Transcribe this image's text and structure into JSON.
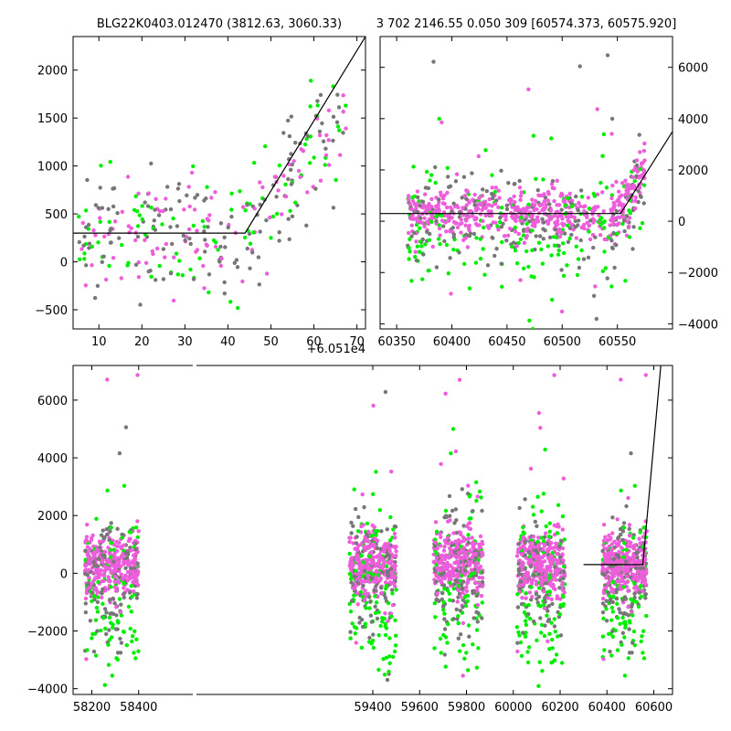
{
  "chart_data": [
    {
      "type": "scatter",
      "name": "zoom-left",
      "title": "BLG22K0403.012470 (3812.63, 3060.33)",
      "xlim": [
        4,
        72
      ],
      "ylim": [
        -700,
        2350
      ],
      "x_ticks": [
        10,
        20,
        30,
        40,
        50,
        60,
        70
      ],
      "y_ticks": [
        -500,
        0,
        500,
        1000,
        1500,
        2000
      ],
      "x_offset_label": "+6.051e4",
      "y_axis_side": "left",
      "model_line": [
        [
          4,
          300
        ],
        [
          44,
          300
        ],
        [
          72,
          2350
        ]
      ],
      "colors": {
        "magenta": "#ee5ddb",
        "green": "#00ee00",
        "gray": "#777777"
      }
    },
    {
      "type": "scatter",
      "name": "zoom-right",
      "title": "3 702 2146.55 0.050 309 [60574.373, 60575.920]",
      "xlim": [
        60335,
        60600
      ],
      "ylim": [
        -4200,
        7200
      ],
      "x_ticks": [
        60350,
        60400,
        60450,
        60500,
        60550
      ],
      "y_ticks": [
        -4000,
        -2000,
        0,
        2000,
        4000,
        6000
      ],
      "y_axis_side": "right",
      "model_line": [
        [
          60335,
          300
        ],
        [
          60553,
          300
        ],
        [
          60600,
          3500
        ]
      ],
      "colors": {
        "magenta": "#ee5ddb",
        "green": "#00ee00",
        "gray": "#777777"
      }
    },
    {
      "type": "scatter",
      "name": "full",
      "title": "",
      "xlim": [
        58120,
        60680
      ],
      "ylim": [
        -4200,
        7200
      ],
      "x_ticks": [
        58200,
        58400,
        59400,
        59600,
        59800,
        60000,
        60200,
        60400,
        60600
      ],
      "y_ticks": [
        -4000,
        -2000,
        0,
        2000,
        4000,
        6000
      ],
      "y_axis_side": "left",
      "model_line": [
        [
          60300,
          300
        ],
        [
          60553,
          300
        ],
        [
          60630,
          7200
        ]
      ],
      "seasons": [
        [
          58170,
          58400
        ],
        [
          59300,
          59500
        ],
        [
          59660,
          59870
        ],
        [
          60015,
          60220
        ],
        [
          60380,
          60570
        ]
      ],
      "colors": {
        "magenta": "#ee5ddb",
        "green": "#00ee00",
        "gray": "#777777"
      }
    }
  ]
}
